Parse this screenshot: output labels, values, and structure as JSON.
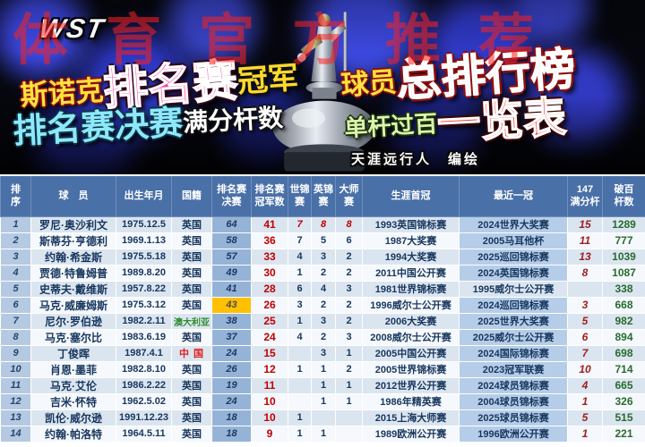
{
  "watermark": "体育官方推荐",
  "banner": {
    "logo": "WST",
    "left1_small": "斯诺克",
    "left1_big": "排名赛",
    "left1_tail": "冠军",
    "right1_small": "球员",
    "right1_big": "总排行榜",
    "left2_big": "排名赛决赛",
    "left2_small": "满分杆数",
    "right2_small": "单杆过百",
    "right2_big": "一览表",
    "credit": "天涯远行人　编绘"
  },
  "colors": {
    "header_bg": "#4a70a8",
    "rank_col_bg": "#b5c9e2",
    "finals_col_bg": "#95b3d7",
    "latest_col_bg": "#b5cde8",
    "orange_highlight": "#ffc000",
    "titles_red": "#c00000",
    "centuries_green": "#276b2e",
    "maxbreak_dark_red": "#9c2020",
    "banner_pink": "#ff3fa4",
    "banner_cyan": "#8ee8fb",
    "banner_red": "#f12f2f",
    "banner_yellow": "#ffe23e"
  },
  "table": {
    "headers": [
      "排\n序",
      "球　员",
      "出生年月",
      "国籍",
      "排名赛\n决赛",
      "排名赛\n冠军数",
      "世锦\n赛",
      "英锦\n赛",
      "大师\n赛",
      "生涯首冠",
      "最近一冠",
      "147\n满分杆",
      "破百\n杆数"
    ],
    "col_keys": [
      "rank",
      "player-name",
      "birth-date",
      "nationality",
      "ranking-finals",
      "ranking-titles",
      "world-championships",
      "uk-championships",
      "masters",
      "first-title",
      "latest-title",
      "max-147-count",
      "century-count"
    ]
  },
  "highlights": {
    "finals_orange_rank": [
      6
    ],
    "nationality_green_rank": [
      7
    ],
    "nationality_red_rank": [
      9
    ],
    "triple_crown_red_rank": [
      1
    ],
    "latest_plain_rank": [
      5
    ]
  },
  "chart_data": {
    "type": "table",
    "title": "斯诺克排名赛冠军 球员总排行榜 · 排名赛决赛 满分杆数 单杆过百 一览表",
    "columns": [
      "排序",
      "球员",
      "出生年月",
      "国籍",
      "排名赛决赛",
      "排名赛冠军数",
      "世锦赛",
      "英锦赛",
      "大师赛",
      "生涯首冠",
      "最近一冠",
      "147满分杆",
      "破百杆数"
    ],
    "rows": [
      [
        "1",
        "罗尼·奥沙利文",
        "1975.12.5",
        "英国",
        "64",
        "41",
        "7",
        "8",
        "8",
        "1993英国锦标赛",
        "2024世界大奖赛",
        "15",
        "1289"
      ],
      [
        "2",
        "斯蒂芬·亨德利",
        "1969.1.13",
        "英国",
        "58",
        "36",
        "7",
        "5",
        "6",
        "1987大奖赛",
        "2005马耳他杯",
        "11",
        "777"
      ],
      [
        "3",
        "约翰·希金斯",
        "1975.5.18",
        "英国",
        "57",
        "33",
        "4",
        "3",
        "2",
        "1994大奖赛",
        "2025巡回锦标赛",
        "13",
        "1039"
      ],
      [
        "4",
        "贾德·特鲁姆普",
        "1989.8.20",
        "英国",
        "49",
        "30",
        "1",
        "2",
        "2",
        "2011中国公开赛",
        "2024英国锦标赛",
        "8",
        "1087"
      ],
      [
        "5",
        "史蒂夫·戴维斯",
        "1957.8.22",
        "英国",
        "41",
        "28",
        "6",
        "4",
        "3",
        "1981世界锦标赛",
        "1995威尔士公开赛",
        "",
        "338"
      ],
      [
        "6",
        "马克·威廉姆斯",
        "1975.3.12",
        "英国",
        "43",
        "26",
        "3",
        "2",
        "2",
        "1996威尔士公开赛",
        "2024巡回锦标赛",
        "3",
        "668"
      ],
      [
        "7",
        "尼尔·罗伯逊",
        "1982.2.11",
        "澳大利亚",
        "38",
        "25",
        "1",
        "3",
        "2",
        "2006大奖赛",
        "2025世界大奖赛",
        "5",
        "982"
      ],
      [
        "8",
        "马克·塞尔比",
        "1983.6.19",
        "英国",
        "37",
        "24",
        "4",
        "2",
        "3",
        "2008威尔士公开赛",
        "2025威尔士公开赛",
        "6",
        "894"
      ],
      [
        "9",
        "丁俊晖",
        "1987.4.1",
        "中 国",
        "24",
        "15",
        "",
        "3",
        "1",
        "2005中国公开赛",
        "2024国际锦标赛",
        "7",
        "698"
      ],
      [
        "10",
        "肖恩·墨菲",
        "1982.8.10",
        "英国",
        "26",
        "12",
        "1",
        "1",
        "2",
        "2005世界锦标赛",
        "2023冠军联赛",
        "10",
        "714"
      ],
      [
        "11",
        "马克·艾伦",
        "1986.2.22",
        "英国",
        "19",
        "11",
        "",
        "1",
        "1",
        "2012世界公开赛",
        "2024球员锦标赛",
        "4",
        "665"
      ],
      [
        "12",
        "吉米·怀特",
        "1962.5.02",
        "英国",
        "24",
        "10",
        "",
        "1",
        "1",
        "1986年精英赛",
        "2004球员锦标赛",
        "1",
        "326"
      ],
      [
        "13",
        "凯伦·威尔逊",
        "1991.12.23",
        "英国",
        "18",
        "10",
        "1",
        "",
        "",
        "2015上海大师赛",
        "2025球员锦标赛",
        "5",
        "515"
      ],
      [
        "14",
        "约翰·帕洛特",
        "1964.5.11",
        "英国",
        "18",
        "9",
        "1",
        "1",
        "",
        "1989欧洲公开赛",
        "1996欧洲公开赛",
        "1",
        "221"
      ]
    ]
  }
}
